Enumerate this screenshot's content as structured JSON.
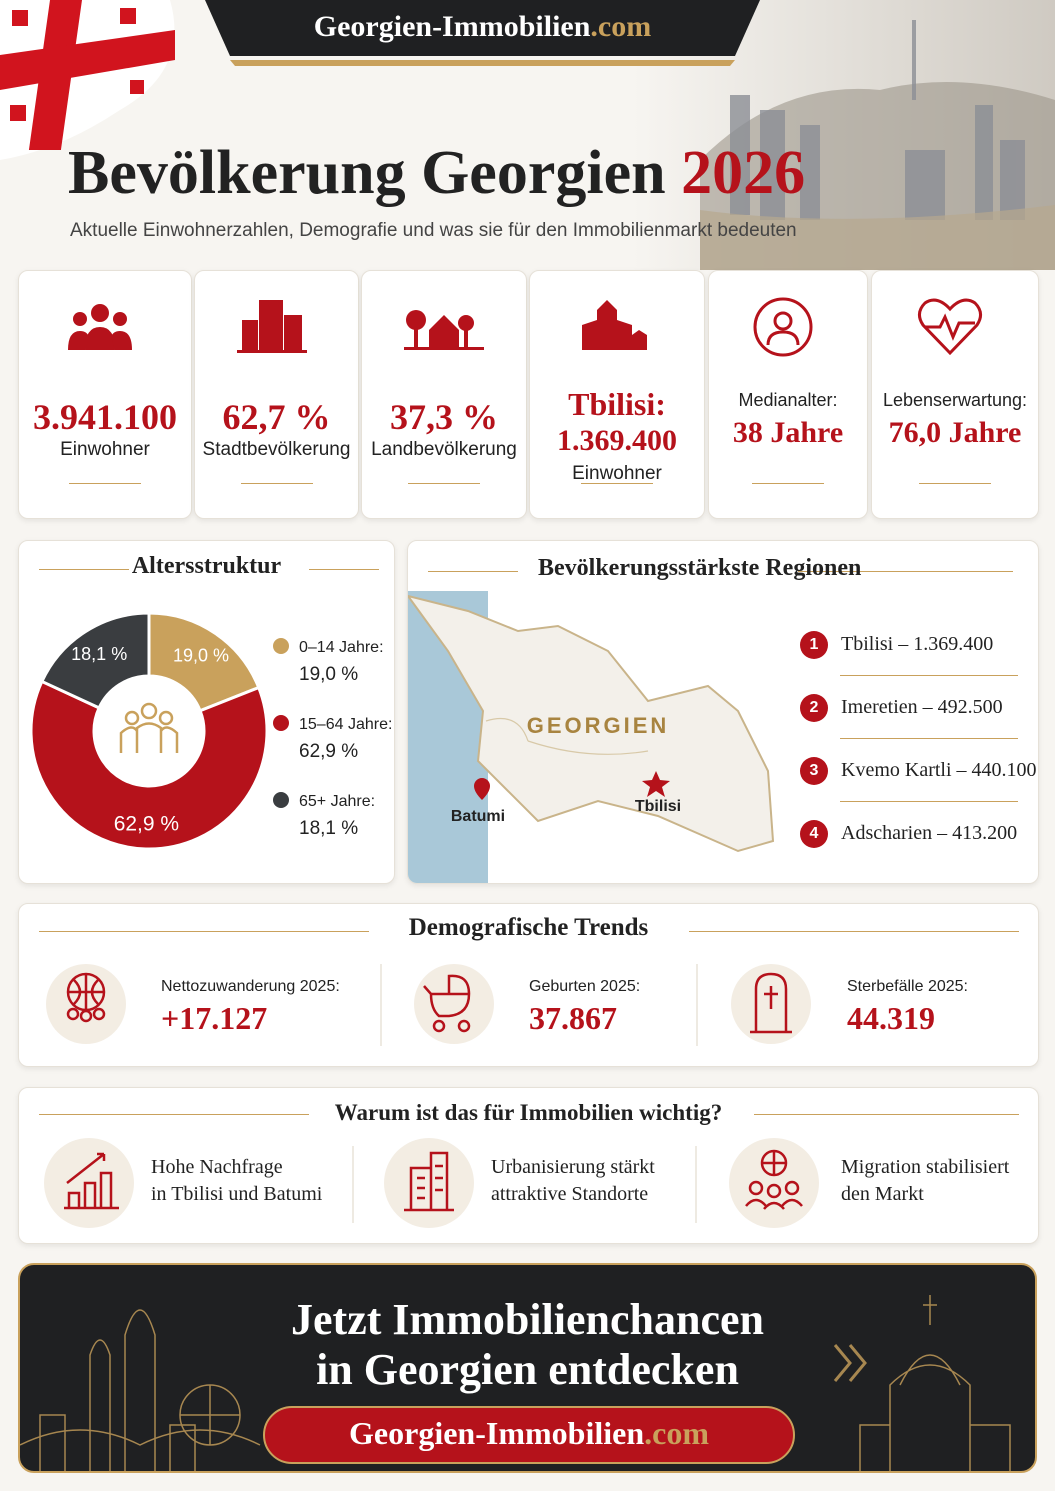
{
  "header": {
    "brand_name": "Georgien-Immobilien",
    "brand_tld": ".com",
    "title": "Bevölkerung Georgien",
    "title_year": "2026",
    "subtitle": "Aktuelle Einwohnerzahlen, Demografie und was sie für den Immobilienmarkt bedeuten"
  },
  "stats": [
    {
      "value": "3.941.100",
      "bottom": "Einwohner"
    },
    {
      "value": "62,7 %",
      "bottom": "Stadtbevölkerung"
    },
    {
      "value": "37,3 %",
      "bottom": "Landbevölkerung"
    },
    {
      "top": "Tbilisi:",
      "value": "1.369.400",
      "bottom": "Einwohner"
    },
    {
      "top": "Medianalter:",
      "value": "38 Jahre"
    },
    {
      "top": "Lebenserwartung:",
      "value": "76,0 Jahre"
    }
  ],
  "chart_data": {
    "type": "donut",
    "title": "Altersstruktur",
    "categories": [
      "0–14 Jahre:",
      "15–64 Jahre:",
      "65+ Jahre:"
    ],
    "values": [
      19.0,
      62.9,
      18.1
    ],
    "value_labels": [
      "19,0 %",
      "62,9 %",
      "18,1 %"
    ],
    "colors": [
      "#c9a15c",
      "#b5121b",
      "#3a3d40"
    ]
  },
  "regions": {
    "title": "Bevölkerungsstärkste Regionen",
    "map_label": "GEORGIEN",
    "cities": [
      "Batumi",
      "Tbilisi"
    ],
    "list": [
      {
        "rank": "1",
        "text": "Tbilisi – 1.369.400"
      },
      {
        "rank": "2",
        "text": "Imeretien – 492.500"
      },
      {
        "rank": "3",
        "text": "Kvemo Kartli – 440.100"
      },
      {
        "rank": "4",
        "text": "Adscharien – 413.200"
      }
    ]
  },
  "trends": {
    "title": "Demografische Trends",
    "items": [
      {
        "label": "Nettozuwanderung 2025:",
        "value": "+17.127"
      },
      {
        "label": "Geburten 2025:",
        "value": "37.867"
      },
      {
        "label": "Sterbefälle 2025:",
        "value": "44.319"
      }
    ]
  },
  "why": {
    "title": "Warum ist das für Immobilien wichtig?",
    "items": [
      [
        "Hohe Nachfrage",
        "in Tbilisi und Batumi"
      ],
      [
        "Urbanisierung stärkt",
        "attraktive Standorte"
      ],
      [
        "Migration stabilisiert",
        "den Markt"
      ]
    ]
  },
  "cta": {
    "headline": [
      "Jetzt Immobilienchancen",
      "in Georgien entdecken"
    ]
  }
}
